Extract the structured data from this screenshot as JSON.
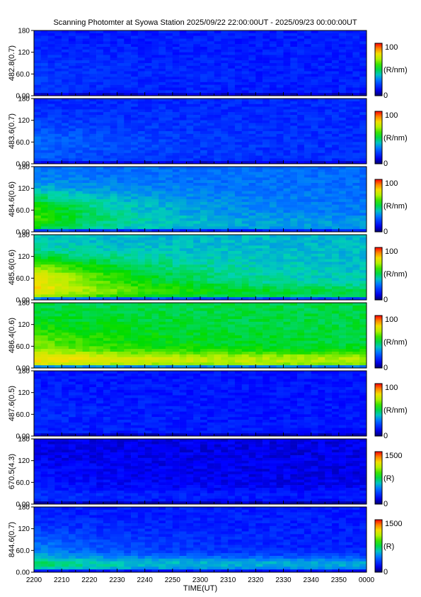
{
  "title": "Scanning Photomter at Syowa Station 2025/09/22 22:00:00UT - 2025/09/23 00:00:00UT",
  "chart_data": {
    "type": "heatmap",
    "xlabel": "TIME(UT)",
    "x_ticks": [
      "2200",
      "2210",
      "2220",
      "2230",
      "2240",
      "2250",
      "2300",
      "2310",
      "2320",
      "2330",
      "2340",
      "2350",
      "0000"
    ],
    "y_ticks": [
      "0.00",
      "60.0",
      "120",
      "180"
    ],
    "ylim": [
      0,
      180
    ],
    "panels": [
      {
        "ylabel": "482.8(0.7)",
        "cbar_max": "100",
        "cbar_min": "0",
        "cbar_unit": "(R/nm)",
        "base": 0.16,
        "blob": 0.05,
        "green_band": 0.0
      },
      {
        "ylabel": "483.6(0.7)",
        "cbar_max": "100",
        "cbar_min": "0",
        "cbar_unit": "(R/nm)",
        "base": 0.18,
        "blob": 0.1,
        "green_band": 0.0
      },
      {
        "ylabel": "484.6(0.6)",
        "cbar_max": "100",
        "cbar_min": "0",
        "cbar_unit": "(R/nm)",
        "base": 0.28,
        "blob": 0.3,
        "green_band": 0.05
      },
      {
        "ylabel": "485.6(0.6)",
        "cbar_max": "100",
        "cbar_min": "0",
        "cbar_unit": "(R/nm)",
        "base": 0.38,
        "blob": 0.4,
        "green_band": 0.1
      },
      {
        "ylabel": "486.4(0.6)",
        "cbar_max": "100",
        "cbar_min": "0",
        "cbar_unit": "(R/nm)",
        "base": 0.5,
        "blob": 0.15,
        "green_band": 0.2
      },
      {
        "ylabel": "487.6(0.5)",
        "cbar_max": "100",
        "cbar_min": "0",
        "cbar_unit": "(R/nm)",
        "base": 0.15,
        "blob": 0.03,
        "green_band": 0.0
      },
      {
        "ylabel": "670.5(4.3)",
        "cbar_max": "1500",
        "cbar_min": "0",
        "cbar_unit": "(R)",
        "base": 0.1,
        "blob": 0.05,
        "green_band": 0.05
      },
      {
        "ylabel": "844.6(0.7)",
        "cbar_max": "1500",
        "cbar_min": "0",
        "cbar_unit": "(R)",
        "base": 0.16,
        "blob": 0.15,
        "green_band": 0.2
      }
    ]
  }
}
